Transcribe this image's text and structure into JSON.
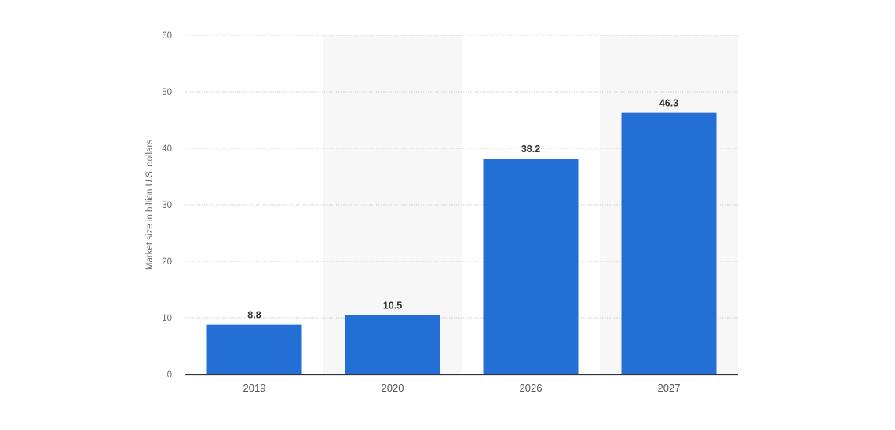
{
  "chart_data": {
    "type": "bar",
    "title": "",
    "xlabel": "",
    "ylabel": "Market size in billion U.S. dollars",
    "categories": [
      "2019",
      "2020",
      "2026",
      "2027"
    ],
    "values": [
      8.8,
      10.5,
      38.2,
      46.3
    ],
    "data_labels": [
      "8.8",
      "10.5",
      "38.2",
      "46.3"
    ],
    "ylim": [
      0,
      60
    ],
    "yticks": [
      0,
      10,
      20,
      30,
      40,
      50,
      60
    ],
    "grid": true,
    "legend": "none",
    "bar_color": "#236fd6",
    "alternate_band_color": "#f7f7f7"
  }
}
